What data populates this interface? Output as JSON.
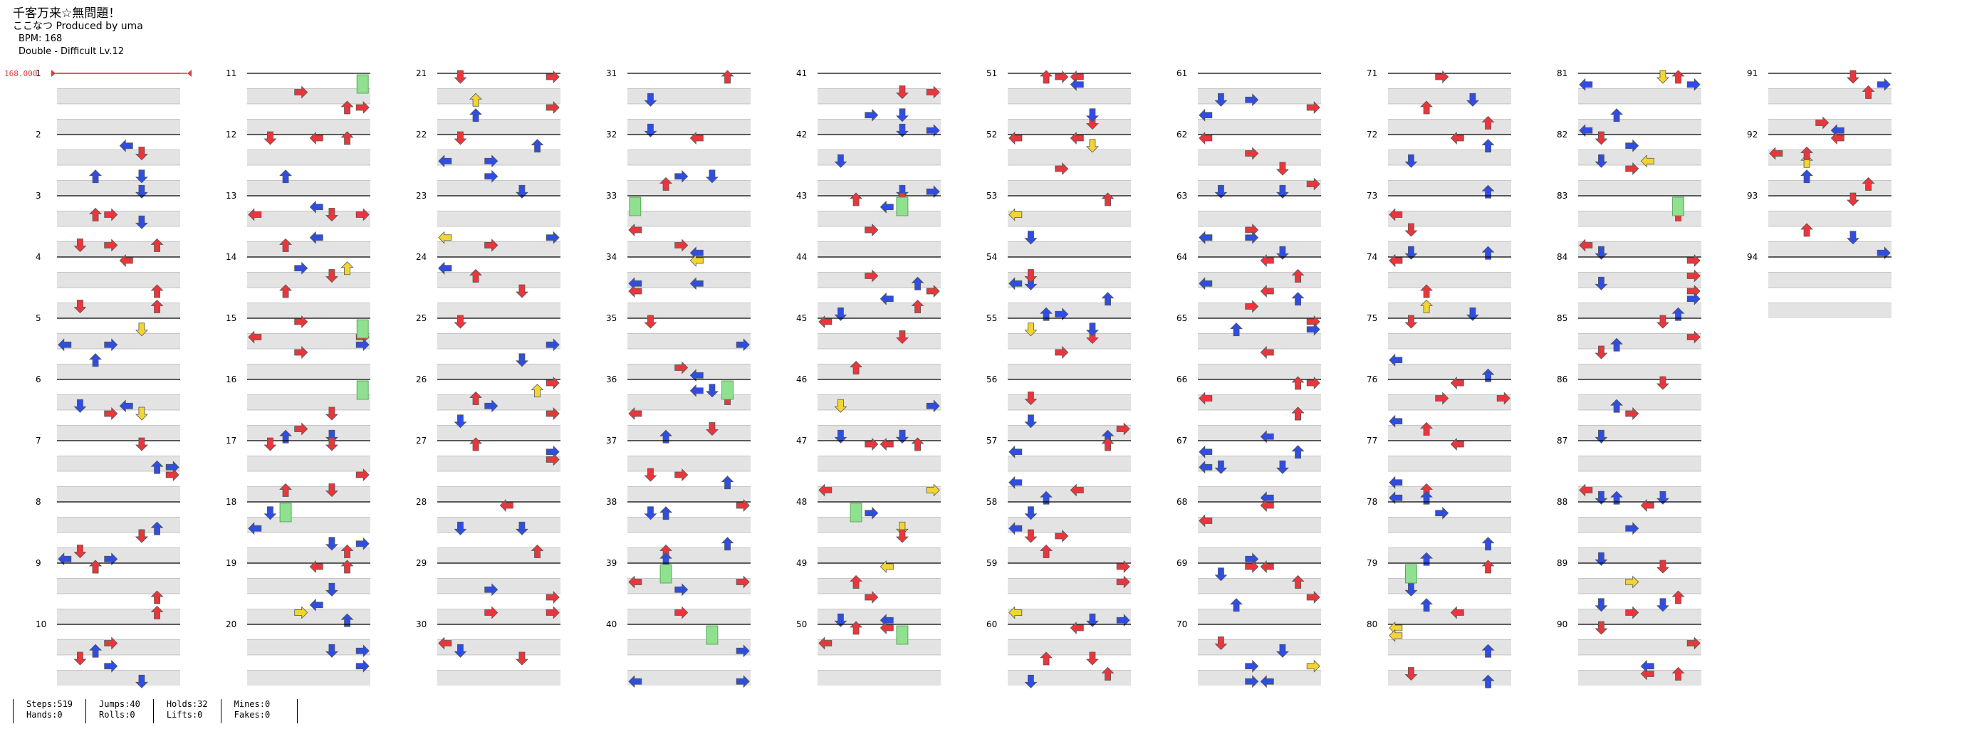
{
  "header": {
    "title": "千客万来☆無問題！",
    "credit": "ここなつ Produced by uma",
    "bpm": "BPM: 168",
    "difficulty": "Double - Difficult Lv.12"
  },
  "bpm_marker": "168.000",
  "measure_labels": [
    "1",
    "2",
    "3",
    "4",
    "5",
    "6",
    "7",
    "8",
    "9",
    "10",
    "11",
    "12",
    "13",
    "14",
    "15",
    "16",
    "17",
    "18",
    "19",
    "20",
    "21",
    "22",
    "23",
    "24",
    "25",
    "26",
    "27",
    "28",
    "29",
    "30",
    "31",
    "32",
    "33",
    "34",
    "35",
    "36",
    "37",
    "38",
    "39",
    "40",
    "41",
    "42",
    "43",
    "44",
    "45",
    "46",
    "47",
    "48",
    "49",
    "50",
    "51",
    "52",
    "53",
    "54",
    "55",
    "56",
    "57",
    "58",
    "59",
    "60",
    "61",
    "62",
    "63",
    "64",
    "65",
    "66",
    "67",
    "68",
    "69",
    "70",
    "71",
    "72",
    "73",
    "74",
    "75",
    "76",
    "77",
    "78",
    "79",
    "80",
    "81",
    "82",
    "83",
    "84",
    "85",
    "86",
    "87",
    "88",
    "89",
    "90",
    "91",
    "92",
    "93",
    "94"
  ],
  "colors": {
    "quarter": "#e8373c",
    "eighth": "#2f4ee0",
    "sixteenth": "#f3d532",
    "hold": "#8fe08f",
    "row_shade": "#e3e3e3"
  },
  "stats": {
    "steps": "Steps:519",
    "hands": "Hands:0",
    "jumps": "Jumps:40",
    "rolls": "Rolls:0",
    "holds": "Holds:32",
    "lifts": "Lifts:0",
    "mines": "Mines:0",
    "fakes": "Fakes:0"
  }
}
